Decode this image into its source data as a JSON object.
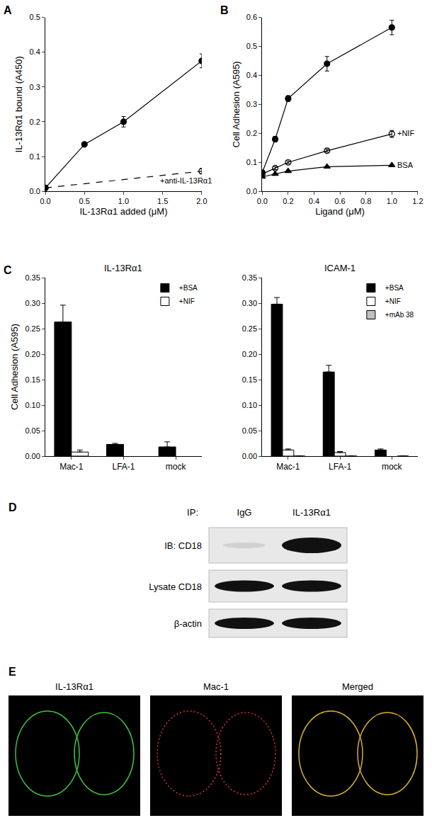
{
  "chart_data": [
    {
      "panel": "A",
      "type": "line",
      "x_label": "IL-13Rα1 added (μM)",
      "y_label": "IL-13Rα1 bound (A450)",
      "xlim": [
        0,
        2
      ],
      "xticks": [
        {
          "value": 0,
          "label": "0.0"
        },
        {
          "value": 0.5,
          "label": "0.5"
        },
        {
          "value": 1,
          "label": "1.0"
        },
        {
          "value": 1.5,
          "label": "1.5"
        },
        {
          "value": 2,
          "label": "2.0"
        }
      ],
      "ylim": [
        0,
        0.5
      ],
      "yticks": [
        {
          "value": 0,
          "label": "0.0"
        },
        0.1,
        0.2,
        0.3,
        0.4,
        0.5
      ],
      "series": [
        {
          "x": [
            0,
            0.5,
            1,
            2
          ],
          "values": [
            0.01,
            0.135,
            0.2,
            0.375
          ],
          "errors": [
            0.003,
            0.005,
            0.015,
            0.02
          ],
          "color": "#000000",
          "marker": "circle",
          "line_style": "solid"
        },
        {
          "x": [
            0,
            2
          ],
          "values": [
            0.01,
            0.058
          ],
          "errors": [
            0,
            0.008
          ],
          "color": "#000000",
          "marker": "circle-open",
          "line_style": "dash"
        }
      ],
      "annotations": [
        {
          "text": "+anti-IL-13Rα1",
          "x": 1.45,
          "y": 0.03
        }
      ]
    },
    {
      "panel": "B",
      "type": "line",
      "x_label": "Ligand (μM)",
      "y_label": "Cell Adhesion (A595)",
      "xlim": [
        0,
        1.2
      ],
      "xticks": [
        {
          "value": 0,
          "label": "0.0"
        },
        0.2,
        0.4,
        0.6,
        0.8,
        {
          "value": 1,
          "label": "1.0"
        },
        1.2
      ],
      "ylim": [
        0,
        0.6
      ],
      "yticks": [
        {
          "value": 0,
          "label": "0.0"
        },
        0.1,
        0.2,
        0.3,
        0.4,
        0.5,
        0.6
      ],
      "series": [
        {
          "x": [
            0,
            0.1,
            0.2,
            0.5,
            1
          ],
          "values": [
            0.065,
            0.18,
            0.32,
            0.44,
            0.565
          ],
          "errors": [
            0.005,
            0.01,
            0.01,
            0.025,
            0.025
          ],
          "color": "#000000",
          "marker": "circle",
          "line_style": "solid"
        },
        {
          "x": [
            0,
            0.1,
            0.2,
            0.5,
            1
          ],
          "values": [
            0.06,
            0.08,
            0.1,
            0.14,
            0.198
          ],
          "errors": [
            0.005,
            0.005,
            0.005,
            0.005,
            0.012
          ],
          "color": "#000000",
          "marker": "circle-open",
          "line_style": "solid"
        },
        {
          "x": [
            0,
            0.1,
            0.2,
            0.5,
            1
          ],
          "values": [
            0.05,
            0.06,
            0.07,
            0.085,
            0.09
          ],
          "errors": [
            0,
            0,
            0,
            0,
            0
          ],
          "color": "#000000",
          "marker": "triangle-up",
          "line_style": "solid"
        }
      ],
      "annotations": [
        {
          "text": "+NIF",
          "x": 1.03,
          "y": 0.2
        },
        {
          "text": "BSA",
          "x": 1.03,
          "y": 0.09
        }
      ]
    },
    {
      "panel": "C",
      "type": "bar",
      "title": "IL-13Rα1",
      "y_label": "Cell Adhesion (A595)",
      "categories": [
        "Mac-1",
        "LFA-1",
        "mock"
      ],
      "ylim": [
        0,
        0.35
      ],
      "yticks": [
        {
          "value": 0,
          "label": "0.00"
        },
        0.05,
        {
          "value": 0.1,
          "label": "0.10"
        },
        0.15,
        {
          "value": 0.2,
          "label": "0.20"
        },
        0.25,
        {
          "value": 0.3,
          "label": "0.30"
        },
        0.35
      ],
      "legend": "top-right",
      "series": [
        {
          "name": "+BSA",
          "color": "#000000",
          "values": [
            0.263,
            0.023,
            0.018
          ],
          "errors": [
            0.033,
            0.002,
            0.01
          ]
        },
        {
          "name": "+NIF",
          "color": "#ffffff",
          "values": [
            0.008,
            null,
            null
          ],
          "errors": [
            0.004,
            null,
            null
          ]
        }
      ]
    },
    {
      "type": "bar",
      "title": "ICAM-1",
      "categories": [
        "Mac-1",
        "LFA-1",
        "mock"
      ],
      "ylim": [
        0,
        0.35
      ],
      "yticks": [
        {
          "value": 0,
          "label": "0.00"
        },
        0.05,
        {
          "value": 0.1,
          "label": "0.10"
        },
        0.15,
        {
          "value": 0.2,
          "label": "0.20"
        },
        0.25,
        {
          "value": 0.3,
          "label": "0.30"
        },
        0.35
      ],
      "legend": "top-right",
      "series": [
        {
          "name": "+BSA",
          "color": "#000000",
          "values": [
            0.298,
            0.165,
            0.012
          ],
          "errors": [
            0.013,
            0.013,
            0.002
          ]
        },
        {
          "name": "+NIF",
          "color": "#ffffff",
          "values": [
            0.012,
            0.007,
            null
          ],
          "errors": [
            0.002,
            0.002,
            null
          ]
        },
        {
          "name": "+mAb 38",
          "color": "#c0c0c0",
          "values": [
            0,
            0,
            0
          ],
          "errors": [
            null,
            null,
            null
          ]
        }
      ]
    }
  ],
  "blot": {
    "panel": "D",
    "ip_label": "IP:",
    "columns": [
      "IgG",
      "IL-13Rα1"
    ],
    "rows": [
      "IB: CD18",
      "Lysate CD18",
      "β-actin"
    ]
  },
  "microscopy": {
    "panel": "E",
    "images": [
      "IL-13Rα1",
      "Mac-1",
      "Merged"
    ]
  }
}
